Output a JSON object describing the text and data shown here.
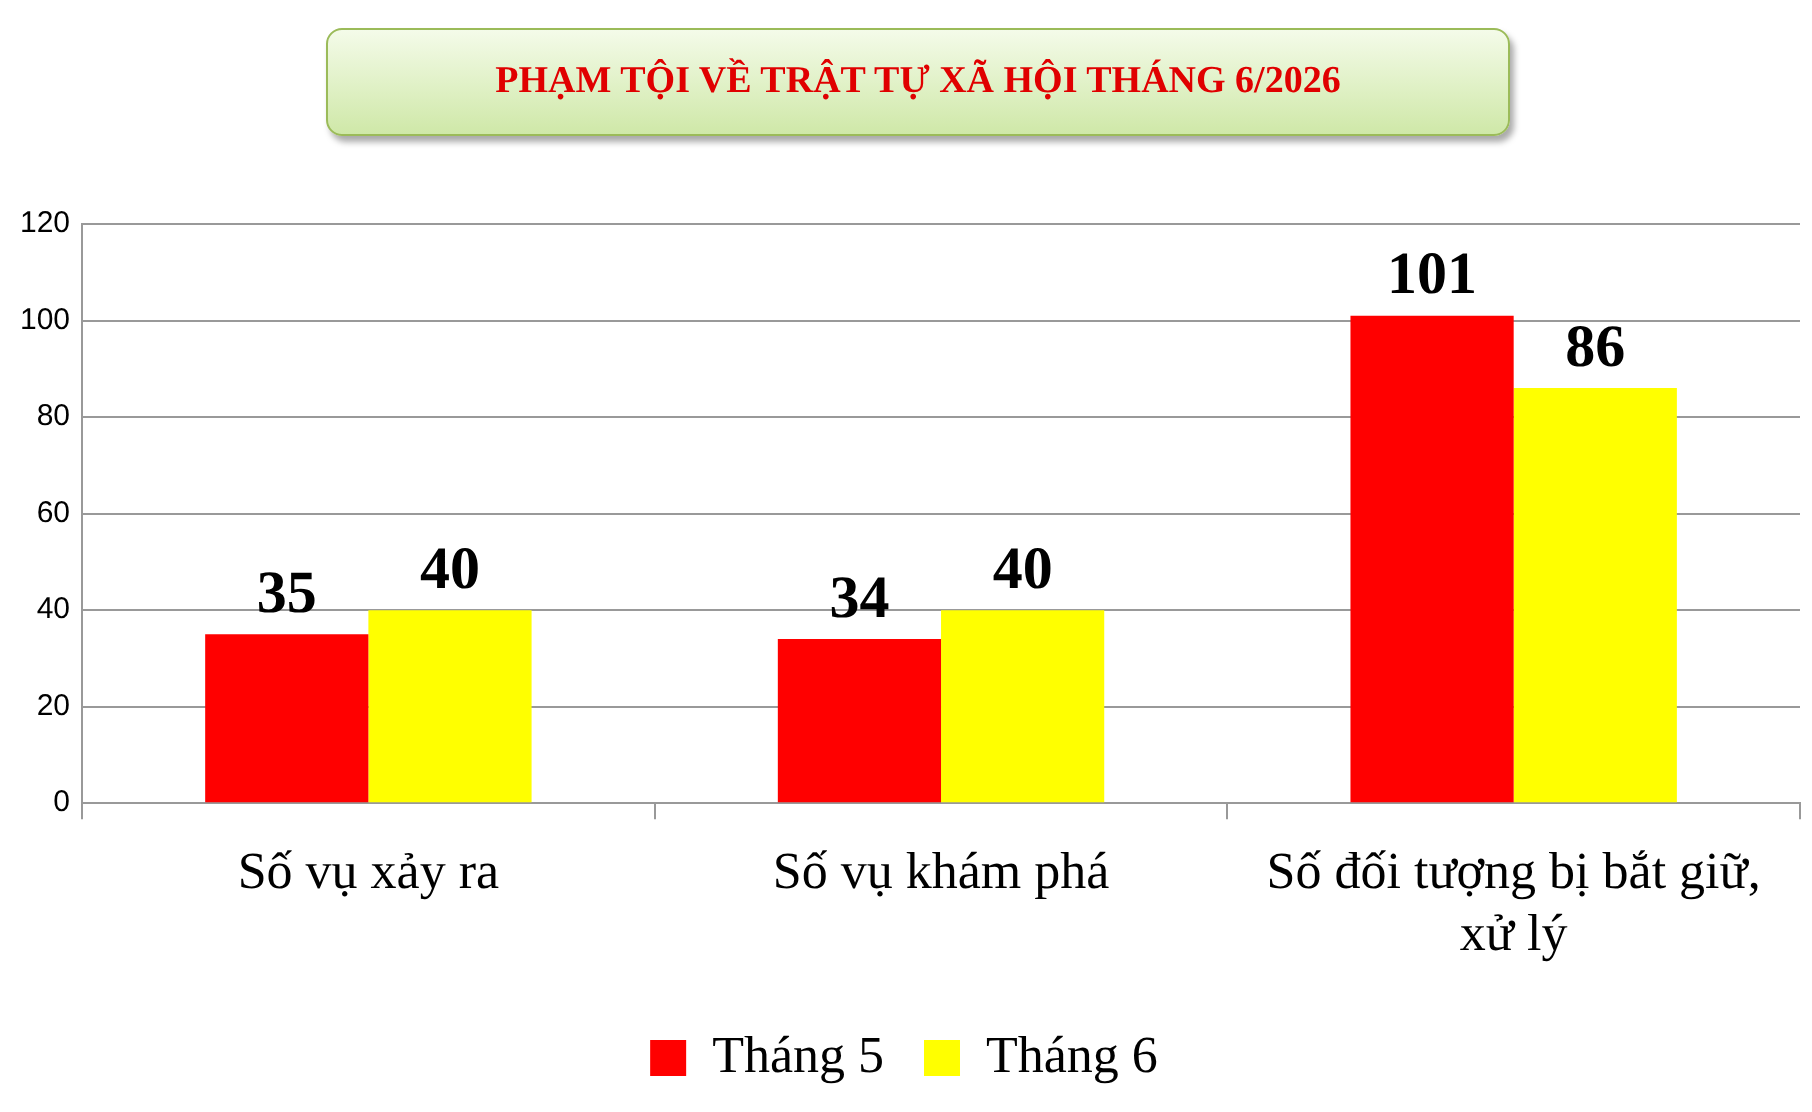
{
  "chart_data": {
    "type": "bar",
    "title": "PHẠM TỘI VỀ TRẬT TỰ XÃ HỘI THÁNG 6/2026",
    "categories": [
      "Số vụ xảy ra",
      "Số vụ khám phá",
      "Số đối tượng bị bắt giữ, xử lý"
    ],
    "series": [
      {
        "name": "Tháng 5",
        "color": "#ff0000",
        "values": [
          35,
          34,
          101
        ]
      },
      {
        "name": "Tháng 6",
        "color": "#ffff00",
        "values": [
          40,
          40,
          86
        ]
      }
    ],
    "ylim": [
      0,
      120
    ],
    "yticks": [
      0,
      20,
      40,
      60,
      80,
      100,
      120
    ],
    "grid": "y",
    "legend": "bottom",
    "data_labels": true
  }
}
